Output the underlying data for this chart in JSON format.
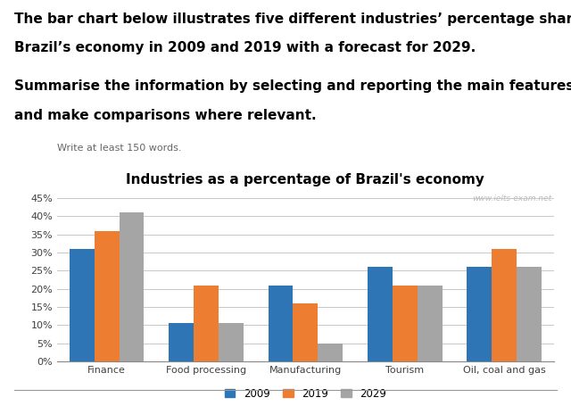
{
  "title": "Industries as a percentage of Brazil's economy",
  "watermark": "www.ielts-exam.net",
  "categories": [
    "Finance",
    "Food processing",
    "Manufacturing",
    "Tourism",
    "Oil, coal and gas"
  ],
  "series": {
    "2009": [
      31,
      10.5,
      21,
      26,
      26
    ],
    "2019": [
      36,
      21,
      16,
      21,
      31
    ],
    "2029": [
      41,
      10.5,
      5,
      21,
      26
    ]
  },
  "colors": {
    "2009": "#2E75B6",
    "2019": "#ED7D31",
    "2029": "#A5A5A5"
  },
  "ylim": [
    0,
    47
  ],
  "yticks": [
    0,
    5,
    10,
    15,
    20,
    25,
    30,
    35,
    40,
    45
  ],
  "ytick_labels": [
    "0%",
    "5%",
    "10%",
    "15%",
    "20%",
    "25%",
    "30%",
    "35%",
    "40%",
    "45%"
  ],
  "legend_labels": [
    "2009",
    "2019",
    "2029"
  ],
  "bar_width": 0.25,
  "figsize": [
    6.4,
    4.55
  ],
  "dpi": 100,
  "title_fontsize": 11,
  "tick_fontsize": 8,
  "legend_fontsize": 8.5,
  "background_color": "#FFFFFF",
  "grid_color": "#C8C8C8",
  "text_color": "#404040",
  "top_text_line1": "The bar chart below illustrates five different industries’ percentage share of",
  "top_text_line2": "Brazil’s economy in 2009 and 2019 with a forecast for 2029.",
  "sub_text_line1": "Summarise the information by selecting and reporting the main features,",
  "sub_text_line2": "and make comparisons where relevant.",
  "write_text": "Write at least 150 words."
}
